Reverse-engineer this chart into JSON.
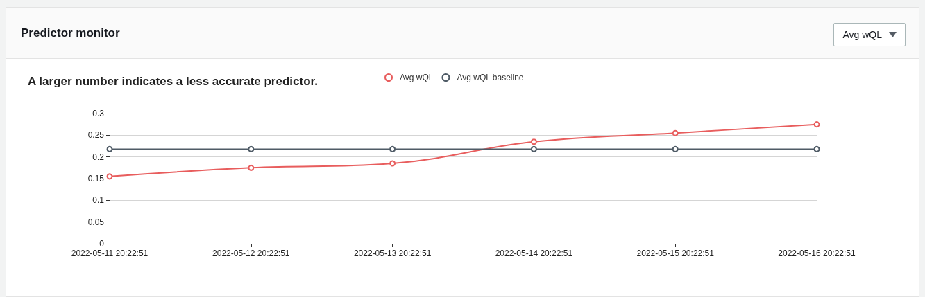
{
  "chart_data": {
    "type": "line",
    "title": "Predictor monitor",
    "subtitle": "A larger number indicates a less accurate predictor.",
    "annotations": [
      "Avg wQL"
    ],
    "categories": [
      "2022-05-11 20:22:51",
      "2022-05-12 20:22:51",
      "2022-05-13 20:22:51",
      "2022-05-14 20:22:51",
      "2022-05-15 20:22:51",
      "2022-05-16 20:22:51"
    ],
    "series": [
      {
        "name": "Avg wQL",
        "color": "#e85d5d",
        "values": [
          0.155,
          0.175,
          0.185,
          0.235,
          0.255,
          0.275
        ]
      },
      {
        "name": "Avg wQL baseline",
        "color": "#4f5b66",
        "values": [
          0.218,
          0.218,
          0.218,
          0.218,
          0.218,
          0.218
        ]
      }
    ],
    "ylim": [
      0,
      0.3
    ],
    "yticks": [
      0,
      0.05,
      0.1,
      0.15,
      0.2,
      0.25,
      0.3
    ],
    "grid": "y",
    "legend": "top",
    "marker": "circle",
    "line_style": "solid"
  }
}
